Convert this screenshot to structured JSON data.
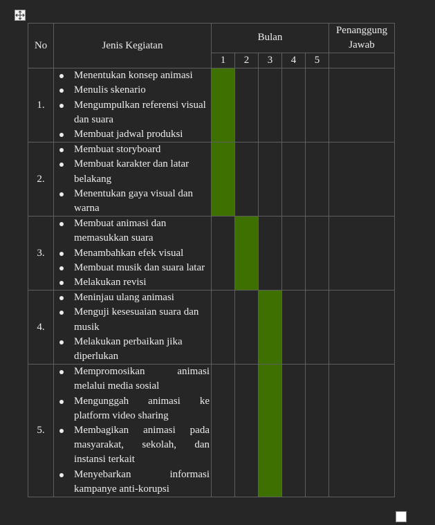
{
  "headers": {
    "no": "No",
    "activity": "Jenis Kegiatan",
    "month": "Bulan",
    "pic": "Penanggung Jawab",
    "months": [
      "1",
      "2",
      "3",
      "4",
      "5"
    ]
  },
  "rows": [
    {
      "no": "1.",
      "items": [
        "Menentukan konsep animasi",
        "Menulis skenario",
        "Mengumpulkan referensi visual dan suara",
        "Membuat jadwal produksi"
      ],
      "active_months": [
        1
      ],
      "pic": ""
    },
    {
      "no": "2.",
      "items": [
        "Membuat storyboard",
        "Membuat karakter dan latar belakang",
        "Menentukan gaya visual dan warna"
      ],
      "active_months": [
        1
      ],
      "pic": ""
    },
    {
      "no": "3.",
      "items": [
        "Membuat animasi dan memasukkan suara",
        "Menambahkan efek visual",
        "Membuat musik dan suara latar",
        "Melakukan revisi"
      ],
      "active_months": [
        2
      ],
      "pic": ""
    },
    {
      "no": "4.",
      "items": [
        "Meninjau ulang animasi",
        "Menguji kesesuaian suara dan musik",
        "Melakukan perbaikan jika diperlukan"
      ],
      "active_months": [
        3
      ],
      "pic": ""
    },
    {
      "no": "5.",
      "items": [
        "Mempromosikan animasi melalui media sosial",
        "Mengunggah animasi ke platform video sharing",
        "Membagikan animasi pada masyarakat, sekolah, dan instansi terkait",
        "Menyebarkan informasi kampanye anti-korupsi"
      ],
      "active_months": [
        3
      ],
      "pic": ""
    }
  ],
  "colors": {
    "background": "#262626",
    "active_month": "#3e7000",
    "border": "#5e5e5e",
    "text": "#ececec"
  },
  "icons": {
    "table_handle": "move-arrows-icon"
  }
}
